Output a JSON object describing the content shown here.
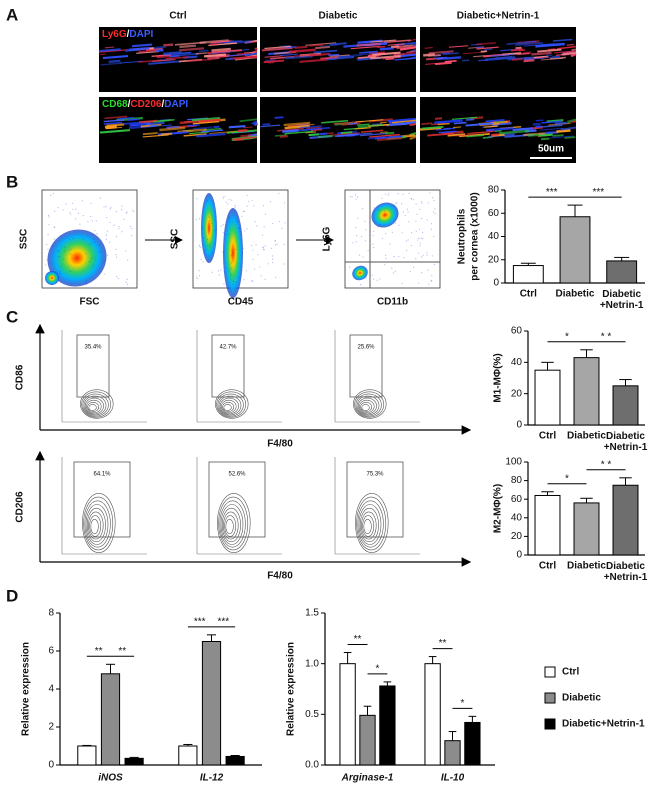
{
  "figure": {
    "panels": [
      "A",
      "B",
      "C",
      "D"
    ],
    "a": {
      "columns": [
        "Ctrl",
        "Diabetic",
        "Diabetic+Netrin-1"
      ],
      "rows": [
        [
          {
            "text": "Ly6G",
            "color": "#ff2b2b"
          },
          {
            "text": "/",
            "color": "#ffffff"
          },
          {
            "text": "DAPI",
            "color": "#3b5bff"
          }
        ],
        [
          {
            "text": "CD68",
            "color": "#2bdc2b"
          },
          {
            "text": "/",
            "color": "#ffffff"
          },
          {
            "text": "CD206",
            "color": "#ff2b2b"
          },
          {
            "text": "/",
            "color": "#ffffff"
          },
          {
            "text": "DAPI",
            "color": "#3b5bff"
          }
        ]
      ],
      "scale_bar": "50um"
    },
    "b_flow": [
      {
        "ylabel": "SSC",
        "xlabel": "FSC"
      },
      {
        "ylabel": "SSC",
        "xlabel": "CD45"
      },
      {
        "ylabel": "Ly6G",
        "xlabel": "CD11b"
      }
    ],
    "c_flow": [
      {
        "ylabel": "CD86",
        "xlabel": "F4/80",
        "gates": [
          "35.4%",
          "42.7%",
          "25.6%"
        ]
      },
      {
        "ylabel": "CD206",
        "xlabel": "F4/80",
        "gates": [
          "64.1%",
          "52.6%",
          "75.3%"
        ]
      }
    ]
  },
  "chart_data": [
    {
      "type": "bar",
      "ylabel": [
        "Neutrophils",
        "per cornea (x1000)"
      ],
      "categories": [
        "Ctrl",
        "Diabetic",
        "Diabetic+Netrin-1"
      ],
      "values": [
        15,
        57,
        19
      ],
      "errors": [
        2,
        10,
        3
      ],
      "colors": [
        "#ffffff",
        "#a6a6a6",
        "#6e6e6e"
      ],
      "ylim": [
        0,
        80
      ],
      "yticks": [
        0,
        20,
        40,
        60,
        80
      ],
      "annotations": [
        "***",
        "***"
      ]
    },
    {
      "type": "bar",
      "ylabel": [
        "M1-MΦ(%)"
      ],
      "categories": [
        "Ctrl",
        "Diabetic",
        "Diabetic+Netrin-1"
      ],
      "values": [
        35,
        43,
        25
      ],
      "errors": [
        5,
        5,
        4
      ],
      "colors": [
        "#ffffff",
        "#a6a6a6",
        "#6e6e6e"
      ],
      "ylim": [
        0,
        60
      ],
      "yticks": [
        0,
        20,
        40,
        60
      ],
      "annotations": [
        "*",
        "* *"
      ]
    },
    {
      "type": "bar",
      "ylabel": [
        "M2-MΦ(%)"
      ],
      "categories": [
        "Ctrl",
        "Diabetic",
        "Diabetic+Netrin-1"
      ],
      "values": [
        64,
        56,
        75
      ],
      "errors": [
        4,
        5,
        8
      ],
      "colors": [
        "#ffffff",
        "#a6a6a6",
        "#6e6e6e"
      ],
      "ylim": [
        0,
        100
      ],
      "yticks": [
        0,
        20,
        40,
        60,
        80,
        100
      ],
      "annotations": [
        "*",
        "* *"
      ]
    },
    {
      "type": "grouped-bar",
      "ylabel": [
        "Relative expression"
      ],
      "categories": [
        "iNOS",
        "IL-12"
      ],
      "series": [
        {
          "color": "#ffffff",
          "values": [
            1.0,
            1.0
          ],
          "errors": [
            0.03,
            0.08
          ]
        },
        {
          "color": "#8c8c8c",
          "values": [
            4.8,
            6.5
          ],
          "errors": [
            0.5,
            0.35
          ]
        },
        {
          "color": "#000000",
          "values": [
            0.35,
            0.45
          ],
          "errors": [
            0.05,
            0.05
          ]
        }
      ],
      "ylim": [
        0,
        8
      ],
      "yticks": [
        0,
        2,
        4,
        6,
        8
      ],
      "annotations": [
        [
          "**",
          "**"
        ],
        [
          "***",
          "***"
        ]
      ]
    },
    {
      "type": "grouped-bar",
      "ylabel": [
        "Relative expression"
      ],
      "categories": [
        "Arginase-1",
        "IL-10"
      ],
      "series": [
        {
          "name": "Ctrl",
          "color": "#ffffff",
          "values": [
            1.0,
            1.0
          ],
          "errors": [
            0.11,
            0.07
          ]
        },
        {
          "name": "Diabetic",
          "color": "#8c8c8c",
          "values": [
            0.49,
            0.24
          ],
          "errors": [
            0.09,
            0.09
          ]
        },
        {
          "name": "Diabetic+Netrin-1",
          "color": "#000000",
          "values": [
            0.78,
            0.42
          ],
          "errors": [
            0.04,
            0.06
          ]
        }
      ],
      "ylim": [
        0,
        1.5
      ],
      "yticks": [
        {
          "value": 0,
          "label": "0.0"
        },
        {
          "value": 0.5,
          "label": "0.5"
        },
        {
          "value": 1.0,
          "label": "1.0"
        },
        {
          "value": 1.5,
          "label": "1.5"
        }
      ],
      "annotations": [
        [
          "**",
          "*"
        ],
        [
          "**",
          "*"
        ]
      ],
      "legend": "right"
    }
  ]
}
